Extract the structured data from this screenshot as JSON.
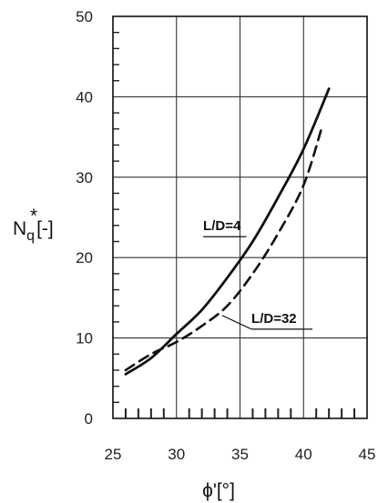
{
  "chart_data": {
    "type": "line",
    "title": "",
    "xlabel": "ϕ'[°]",
    "ylabel_main": "N",
    "ylabel_sub": "q",
    "ylabel_sup": "*",
    "ylabel_unit": "[-]",
    "xlim": [
      25,
      45
    ],
    "ylim": [
      0,
      50
    ],
    "x_ticks": [
      "25",
      "30",
      "35",
      "40",
      "45"
    ],
    "y_ticks": [
      "0",
      "10",
      "20",
      "30",
      "40",
      "50"
    ],
    "grid": true,
    "series": [
      {
        "name": "L/D=4",
        "style": "solid",
        "x": [
          26,
          28,
          30,
          32,
          34,
          36,
          38,
          40,
          42
        ],
        "y": [
          5.5,
          7.5,
          10.5,
          13.5,
          17.5,
          22,
          27.5,
          33.5,
          41
        ]
      },
      {
        "name": "L/D=32",
        "style": "dashed",
        "x": [
          26,
          28,
          30,
          32,
          34,
          36,
          38,
          40,
          41.5
        ],
        "y": [
          6,
          8,
          9.5,
          11.5,
          14,
          18,
          23,
          29,
          36.5
        ]
      }
    ],
    "annotations": [
      {
        "text": "L/D=4",
        "series": "L/D=4"
      },
      {
        "text": "L/D=32",
        "series": "L/D=32"
      }
    ]
  }
}
